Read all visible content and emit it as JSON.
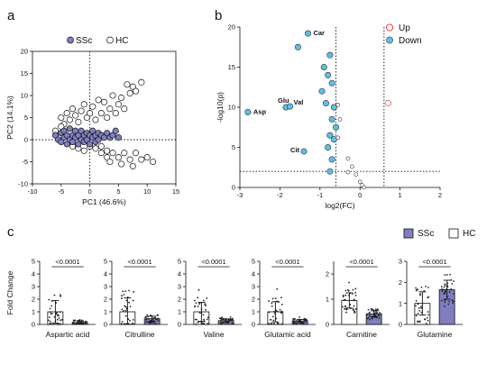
{
  "figure": {
    "panel_labels": [
      "a",
      "b",
      "c"
    ]
  },
  "chart_data": [
    {
      "panel": "a",
      "type": "scatter",
      "xlabel": "PC1 (46.6%)",
      "ylabel": "PC2 (14.1%)",
      "xlim": [
        -10,
        15
      ],
      "ylim": [
        -10,
        20
      ],
      "xticks": [
        "-10",
        "-5",
        "0",
        "5",
        "10",
        "15"
      ],
      "yticks": [
        "-10",
        "-5",
        "0",
        "5",
        "10",
        "15",
        "20"
      ],
      "legend": {
        "placement": "top-left",
        "entries": [
          "SSc",
          "HC"
        ]
      },
      "colors": {
        "SSc": "#7f7fc0",
        "HC": "#ffffff"
      },
      "reference_lines": {
        "x": 0,
        "y": 0,
        "style": "dotted"
      },
      "series": [
        {
          "name": "SSc",
          "points": [
            [
              -6,
              1
            ],
            [
              -5.5,
              0
            ],
            [
              -5,
              1.5
            ],
            [
              -5,
              -0.5
            ],
            [
              -4.5,
              2
            ],
            [
              -4.5,
              0.5
            ],
            [
              -4,
              1
            ],
            [
              -4,
              -1
            ],
            [
              -3.5,
              0
            ],
            [
              -3.5,
              2.5
            ],
            [
              -3,
              1
            ],
            [
              -3,
              -0.5
            ],
            [
              -2.5,
              2
            ],
            [
              -2.5,
              0.5
            ],
            [
              -2,
              1
            ],
            [
              -2,
              -1
            ],
            [
              -1.5,
              0
            ],
            [
              -1.5,
              2
            ],
            [
              -1,
              1
            ],
            [
              -1,
              -0.5
            ],
            [
              -0.5,
              1.5
            ],
            [
              -0.5,
              0
            ],
            [
              0,
              1
            ],
            [
              0,
              -1
            ],
            [
              0.5,
              2
            ],
            [
              0.5,
              0.5
            ],
            [
              1,
              1
            ],
            [
              1,
              -0.5
            ],
            [
              1.5,
              1.5
            ],
            [
              1.5,
              0
            ],
            [
              2,
              1
            ],
            [
              2.5,
              0.5
            ],
            [
              3,
              1.5
            ],
            [
              3.5,
              0.5
            ],
            [
              4,
              1
            ],
            [
              4.5,
              2
            ],
            [
              5,
              0.5
            ]
          ]
        },
        {
          "name": "HC",
          "points": [
            [
              -5,
              5
            ],
            [
              -4.5,
              3.5
            ],
            [
              -4,
              6
            ],
            [
              -3.5,
              4.5
            ],
            [
              -3,
              7
            ],
            [
              -2.5,
              5.5
            ],
            [
              -2,
              4
            ],
            [
              -1.5,
              6.5
            ],
            [
              -1,
              8
            ],
            [
              -0.5,
              5
            ],
            [
              0,
              6
            ],
            [
              0.5,
              7.5
            ],
            [
              1,
              4.5
            ],
            [
              1.5,
              9
            ],
            [
              2,
              6
            ],
            [
              2.5,
              8.5
            ],
            [
              3,
              5
            ],
            [
              3.5,
              7
            ],
            [
              4,
              10
            ],
            [
              4.5,
              6
            ],
            [
              5,
              8
            ],
            [
              5.5,
              9.5
            ],
            [
              6,
              7
            ],
            [
              7,
              10.5
            ],
            [
              7.5,
              12
            ],
            [
              8,
              11
            ],
            [
              9,
              13
            ],
            [
              6.5,
              12.5
            ],
            [
              -3,
              -1.5
            ],
            [
              -2,
              -2
            ],
            [
              -1,
              -2.5
            ],
            [
              0,
              -1.5
            ],
            [
              1,
              -2
            ],
            [
              2,
              -1.5
            ],
            [
              3,
              -2.5
            ],
            [
              2,
              -3
            ],
            [
              3,
              -4
            ],
            [
              4,
              -3
            ],
            [
              3.5,
              -5
            ],
            [
              5,
              -4
            ],
            [
              6,
              -3
            ],
            [
              5.5,
              -5.5
            ],
            [
              7,
              -4.5
            ],
            [
              8,
              -3
            ],
            [
              9,
              -4.5
            ],
            [
              7.5,
              -6
            ],
            [
              10,
              -4
            ],
            [
              11,
              -5
            ],
            [
              -6,
              2
            ],
            [
              -5,
              3
            ]
          ]
        }
      ]
    },
    {
      "panel": "b",
      "type": "scatter",
      "xlabel": "log2(FC)",
      "ylabel": "-log10(p)",
      "xlim": [
        -3,
        2
      ],
      "ylim": [
        0,
        20
      ],
      "xticks": [
        "-3",
        "-2",
        "-1",
        "0",
        "1",
        "2"
      ],
      "yticks": [
        "0",
        "5",
        "10",
        "15",
        "20"
      ],
      "legend": {
        "placement": "top-right",
        "entries": [
          "Up",
          "Down"
        ]
      },
      "colors": {
        "Up": "#e03030",
        "Down": "#5bc0eb",
        "ns": "#ffffff"
      },
      "threshold_lines": {
        "x": [
          -0.6,
          0.6
        ],
        "y": 2,
        "style": "dotted"
      },
      "series": [
        {
          "name": "Up",
          "points": [
            [
              0.7,
              10.5
            ]
          ]
        },
        {
          "name": "Down",
          "points": [
            [
              -2.8,
              9.4
            ],
            [
              -1.85,
              10
            ],
            [
              -1.75,
              10.1
            ],
            [
              -1.3,
              19.2
            ],
            [
              -1.55,
              17.5
            ],
            [
              -0.75,
              16.5
            ],
            [
              -0.9,
              15
            ],
            [
              -0.8,
              14
            ],
            [
              -0.7,
              13
            ],
            [
              -0.95,
              12
            ],
            [
              -0.85,
              10.5
            ],
            [
              -0.65,
              10
            ],
            [
              -0.7,
              8.5
            ],
            [
              -0.6,
              7.5
            ],
            [
              -0.75,
              6.5
            ],
            [
              -0.65,
              6
            ],
            [
              -0.8,
              5
            ],
            [
              -1.4,
              4.5
            ],
            [
              -0.7,
              3.5
            ],
            [
              -0.75,
              2
            ]
          ]
        },
        {
          "name": "ns",
          "points": [
            [
              -0.55,
              10.3
            ],
            [
              -0.5,
              8.5
            ],
            [
              -0.55,
              6.2
            ],
            [
              -0.3,
              3.6
            ],
            [
              -0.2,
              2.6
            ],
            [
              -0.3,
              1.9
            ],
            [
              -0.1,
              1.6
            ],
            [
              0.0,
              0.7
            ],
            [
              0.05,
              0.3
            ],
            [
              0.1,
              0.0
            ]
          ]
        }
      ],
      "annotations": [
        {
          "text": "Car",
          "x": -1.3,
          "y": 19.2
        },
        {
          "text": "Glu",
          "x": -1.85,
          "y": 10
        },
        {
          "text": "Val",
          "x": -1.75,
          "y": 10.1
        },
        {
          "text": "Asp",
          "x": -2.8,
          "y": 9.4
        },
        {
          "text": "Cit",
          "x": -1.4,
          "y": 4.5
        }
      ]
    },
    {
      "panel": "c",
      "type": "bar",
      "ylabel": "Fold Change",
      "legend": {
        "placement": "top-right",
        "entries": [
          "SSc",
          "HC"
        ]
      },
      "colors": {
        "SSc": "#7f7fc0",
        "HC": "#ffffff"
      },
      "group_order": [
        "HC",
        "SSc"
      ],
      "subplots": [
        {
          "category": "Aspartic acid",
          "ylim": [
            0,
            5
          ],
          "yticks": [
            "0",
            "1",
            "2",
            "3",
            "4",
            "5"
          ],
          "values": {
            "HC": 1.0,
            "SSc": 0.15
          },
          "sd": {
            "HC": 0.9,
            "SSc": 0.12
          },
          "p": "<0.0001"
        },
        {
          "category": "Citrulline",
          "ylim": [
            0,
            5
          ],
          "yticks": [
            "0",
            "1",
            "2",
            "3",
            "4",
            "5"
          ],
          "values": {
            "HC": 1.0,
            "SSc": 0.45
          },
          "sd": {
            "HC": 1.1,
            "SSc": 0.2
          },
          "p": "<0.0001"
        },
        {
          "category": "Valine",
          "ylim": [
            0,
            5
          ],
          "yticks": [
            "0",
            "1",
            "2",
            "3",
            "4",
            "5"
          ],
          "values": {
            "HC": 1.0,
            "SSc": 0.3
          },
          "sd": {
            "HC": 0.75,
            "SSc": 0.12
          },
          "p": "<0.0001"
        },
        {
          "category": "Glutamic acid",
          "ylim": [
            0,
            5
          ],
          "yticks": [
            "0",
            "1",
            "2",
            "3",
            "4",
            "5"
          ],
          "values": {
            "HC": 1.0,
            "SSc": 0.28
          },
          "sd": {
            "HC": 0.8,
            "SSc": 0.12
          },
          "p": "<0.0001"
        },
        {
          "category": "Carnitine",
          "ylim": [
            0,
            2.5
          ],
          "yticks": [
            "0",
            "1",
            "2"
          ],
          "values": {
            "HC": 0.95,
            "SSc": 0.42
          },
          "sd": {
            "HC": 0.3,
            "SSc": 0.12
          },
          "p": "<0.0001"
        },
        {
          "category": "Glutamine",
          "ylim": [
            0,
            3
          ],
          "yticks": [
            "0",
            "1",
            "2",
            "3"
          ],
          "values": {
            "HC": 1.0,
            "SSc": 1.65
          },
          "sd": {
            "HC": 0.55,
            "SSc": 0.45
          },
          "p": "<0.0001"
        }
      ]
    }
  ]
}
